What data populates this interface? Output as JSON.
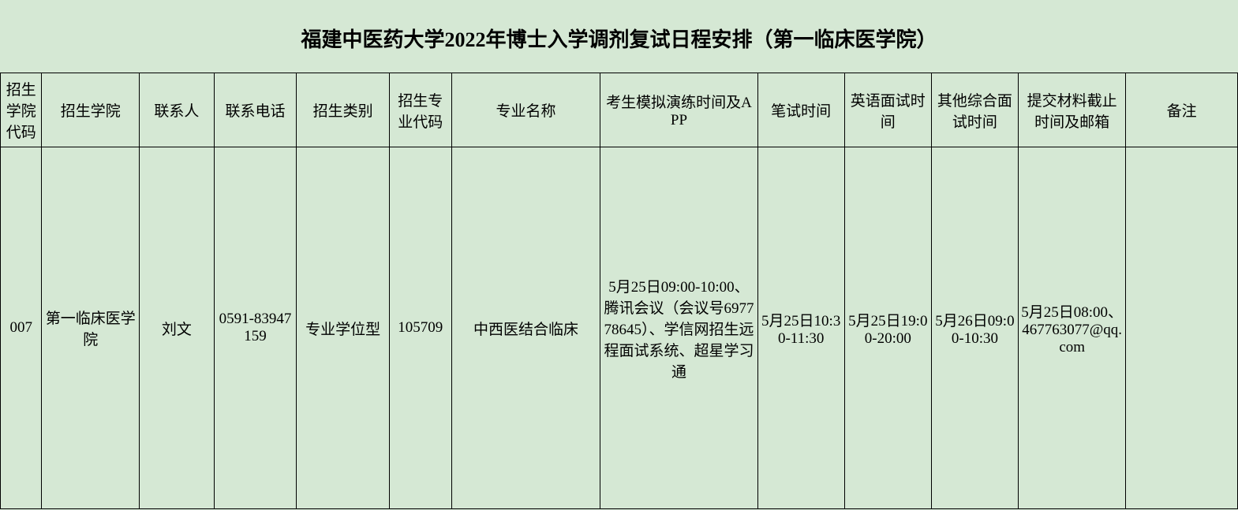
{
  "title": "福建中医药大学2022年博士入学调剂复试日程安排（第一临床医学院）",
  "headers": {
    "col0": "招生学院代码",
    "col1": "招生学院",
    "col2": "联系人",
    "col3": "联系电话",
    "col4": "招生类别",
    "col5": "招生专业代码",
    "col6": "专业名称",
    "col7": "考生模拟演练时间及APP",
    "col8": "笔试时间",
    "col9": "英语面试时间",
    "col10": "其他综合面试时间",
    "col11": "提交材料截止时间及邮箱",
    "col12": "备注"
  },
  "row": {
    "code": "007",
    "college": "第一临床医学院",
    "contact": "刘文",
    "phone": "0591-83947159",
    "type": "专业学位型",
    "major_code": "105709",
    "major_name": "中西医结合临床",
    "practice": "5月25日09:00-10:00、腾讯会议（会议号697778645）、学信网招生远程面试系统、超星学习通",
    "written": "5月25日10:30-11:30",
    "english": "5月25日19:00-20:00",
    "other": "5月26日09:00-10:30",
    "deadline": "5月25日08:00、467763077@qq.com",
    "remark": ""
  },
  "styling": {
    "background_color": "#d5e8d4",
    "border_color": "#000000",
    "text_color": "#000000",
    "title_fontsize": 26,
    "header_fontsize": 19,
    "cell_fontsize": 19,
    "font_family": "SimSun"
  }
}
